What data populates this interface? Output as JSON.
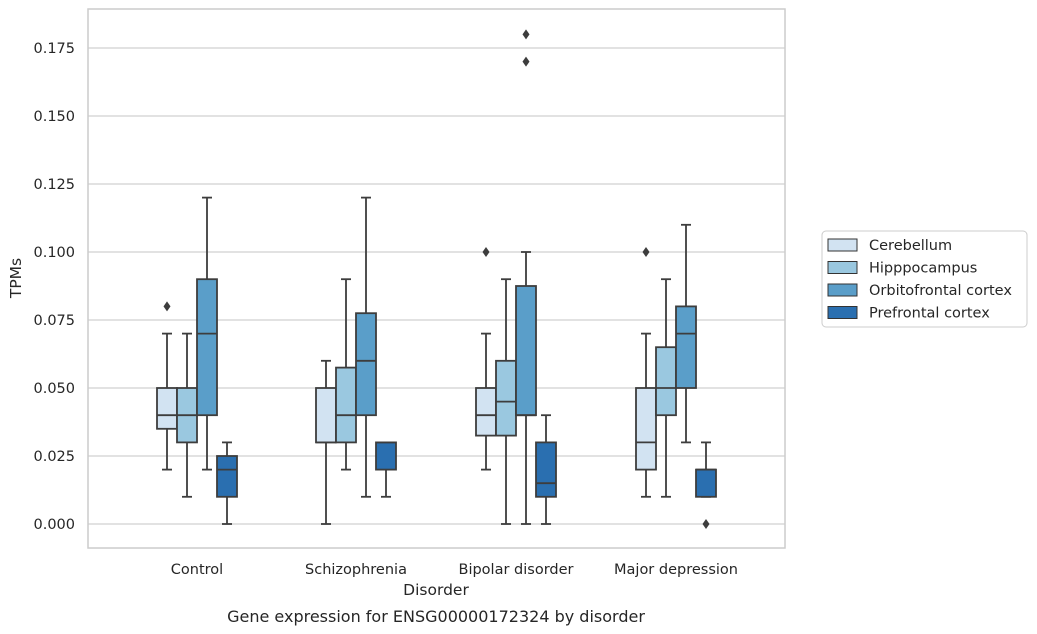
{
  "chart_data": {
    "type": "box",
    "categories": [
      "Control",
      "Schizophrenia",
      "Bipolar disorder",
      "Major depression"
    ],
    "series": [
      {
        "name": "Cerebellum",
        "color": "#d2e3f2",
        "boxes": [
          {
            "min": 0.02,
            "q1": 0.035,
            "median": 0.04,
            "q3": 0.05,
            "max": 0.07,
            "outliers": [
              0.08
            ]
          },
          {
            "min": 0.0,
            "q1": 0.03,
            "median": 0.03,
            "q3": 0.05,
            "max": 0.06,
            "outliers": []
          },
          {
            "min": 0.02,
            "q1": 0.0325,
            "median": 0.04,
            "q3": 0.05,
            "max": 0.07,
            "outliers": [
              0.1
            ]
          },
          {
            "min": 0.01,
            "q1": 0.02,
            "median": 0.03,
            "q3": 0.05,
            "max": 0.07,
            "outliers": [
              0.1
            ]
          }
        ]
      },
      {
        "name": "Hipppocampus",
        "color": "#9ac8e0",
        "boxes": [
          {
            "min": 0.01,
            "q1": 0.03,
            "median": 0.04,
            "q3": 0.05,
            "max": 0.07,
            "outliers": []
          },
          {
            "min": 0.02,
            "q1": 0.03,
            "median": 0.04,
            "q3": 0.0575,
            "max": 0.09,
            "outliers": []
          },
          {
            "min": 0.0,
            "q1": 0.0325,
            "median": 0.045,
            "q3": 0.06,
            "max": 0.09,
            "outliers": []
          },
          {
            "min": 0.01,
            "q1": 0.04,
            "median": 0.05,
            "q3": 0.065,
            "max": 0.09,
            "outliers": []
          }
        ]
      },
      {
        "name": "Orbitofrontal cortex",
        "color": "#5a9ec9",
        "boxes": [
          {
            "min": 0.02,
            "q1": 0.04,
            "median": 0.07,
            "q3": 0.09,
            "max": 0.12,
            "outliers": []
          },
          {
            "min": 0.01,
            "q1": 0.04,
            "median": 0.06,
            "q3": 0.0775,
            "max": 0.12,
            "outliers": []
          },
          {
            "min": 0.0,
            "q1": 0.04,
            "median": 0.04,
            "q3": 0.0875,
            "max": 0.1,
            "outliers": [
              0.17,
              0.18
            ]
          },
          {
            "min": 0.03,
            "q1": 0.05,
            "median": 0.07,
            "q3": 0.08,
            "max": 0.11,
            "outliers": []
          }
        ]
      },
      {
        "name": "Prefrontal cortex",
        "color": "#2a6fb0",
        "boxes": [
          {
            "min": 0.0,
            "q1": 0.01,
            "median": 0.02,
            "q3": 0.025,
            "max": 0.03,
            "outliers": []
          },
          {
            "min": 0.01,
            "q1": 0.02,
            "median": 0.03,
            "q3": 0.03,
            "max": 0.03,
            "outliers": []
          },
          {
            "min": 0.0,
            "q1": 0.01,
            "median": 0.015,
            "q3": 0.03,
            "max": 0.04,
            "outliers": []
          },
          {
            "min": 0.01,
            "q1": 0.01,
            "median": 0.02,
            "q3": 0.02,
            "max": 0.03,
            "outliers": [
              0.0
            ]
          }
        ]
      }
    ],
    "title": "Gene expression for ENSG00000172324 by disorder",
    "xlabel": "Disorder",
    "ylabel": "TPMs",
    "ylim": [
      -0.009,
      0.189
    ],
    "yticks": [
      0.0,
      0.025,
      0.05,
      0.075,
      0.1,
      0.125,
      0.15,
      0.175
    ],
    "ytick_labels": [
      "0.000",
      "0.025",
      "0.050",
      "0.075",
      "0.100",
      "0.125",
      "0.150",
      "0.175"
    ],
    "grid": true,
    "legend_position": "right"
  }
}
